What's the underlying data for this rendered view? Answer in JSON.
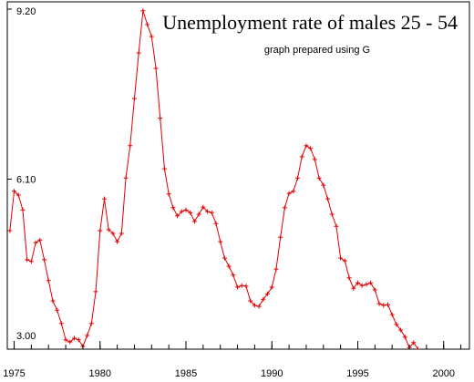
{
  "chart_data": {
    "type": "line",
    "title": "Unemployment rate of males 25 - 54",
    "subtitle": "graph prepared using G",
    "color": "#e00000",
    "x": [
      1974.75,
      1975,
      1975.25,
      1975.5,
      1975.75,
      1976,
      1976.25,
      1976.5,
      1976.75,
      1977,
      1977.25,
      1977.5,
      1977.75,
      1978,
      1978.25,
      1978.5,
      1978.75,
      1979,
      1979.25,
      1979.5,
      1979.75,
      1980,
      1980.25,
      1980.5,
      1980.75,
      1981,
      1981.25,
      1981.5,
      1981.75,
      1982,
      1982.25,
      1982.5,
      1982.75,
      1983,
      1983.25,
      1983.5,
      1983.75,
      1984,
      1984.25,
      1984.5,
      1984.75,
      1985,
      1985.25,
      1985.5,
      1985.75,
      1986,
      1986.25,
      1986.5,
      1986.75,
      1987,
      1987.25,
      1987.5,
      1987.75,
      1988,
      1988.25,
      1988.5,
      1988.75,
      1989,
      1989.25,
      1989.5,
      1989.75,
      1990,
      1990.25,
      1990.5,
      1990.75,
      1991,
      1991.25,
      1991.5,
      1991.75,
      1992,
      1992.25,
      1992.5,
      1992.75,
      1993,
      1993.25,
      1993.5,
      1993.75,
      1994,
      1994.25,
      1994.5,
      1994.75,
      1995,
      1995.25,
      1995.5,
      1995.75,
      1996,
      1996.25,
      1996.5,
      1996.75,
      1997,
      1997.25,
      1997.5,
      1997.75,
      1998,
      1998.25,
      1998.5,
      1998.75
    ],
    "values": [
      5.16,
      5.88,
      5.81,
      5.54,
      4.63,
      4.6,
      4.94,
      4.99,
      4.63,
      4.25,
      3.88,
      3.71,
      3.47,
      3.17,
      3.13,
      3.2,
      3.17,
      3.05,
      3.25,
      3.47,
      4.05,
      5.16,
      5.74,
      5.18,
      5.11,
      4.96,
      5.11,
      6.12,
      6.71,
      7.57,
      8.4,
      9.17,
      8.92,
      8.7,
      8.12,
      7.21,
      6.29,
      5.83,
      5.58,
      5.43,
      5.51,
      5.54,
      5.49,
      5.33,
      5.46,
      5.59,
      5.51,
      5.49,
      5.29,
      4.96,
      4.66,
      4.51,
      4.35,
      4.13,
      4.16,
      4.15,
      3.88,
      3.8,
      3.78,
      3.91,
      4.01,
      4.13,
      4.46,
      5.04,
      5.58,
      5.84,
      5.88,
      6.12,
      6.51,
      6.71,
      6.66,
      6.46,
      6.12,
      5.99,
      5.74,
      5.46,
      5.24,
      4.66,
      4.61,
      4.3,
      4.11,
      4.21,
      4.16,
      4.18,
      4.21,
      4.08,
      3.83,
      3.8,
      3.81,
      3.63,
      3.45,
      3.35,
      3.22,
      3.03,
      3.12,
      3.0,
      2.88
    ],
    "xlim": [
      1974.6,
      2001.5
    ],
    "ylim": [
      3.0,
      9.2
    ],
    "xticks": [
      1975,
      1980,
      1985,
      1990,
      1995,
      2000
    ],
    "xminorticks": [
      1975,
      1976,
      1977,
      1978,
      1979,
      1980,
      1981,
      1982,
      1983,
      1984,
      1985,
      1986,
      1987,
      1988,
      1989,
      1990,
      1991,
      1992,
      1993,
      1994,
      1995,
      1996,
      1997,
      1998,
      1999,
      2000,
      2001
    ],
    "yticks": [
      {
        "value": 3.0,
        "label": "3.00"
      },
      {
        "value": 6.1,
        "label": "6.10"
      },
      {
        "value": 9.2,
        "label": "9.20"
      }
    ]
  }
}
